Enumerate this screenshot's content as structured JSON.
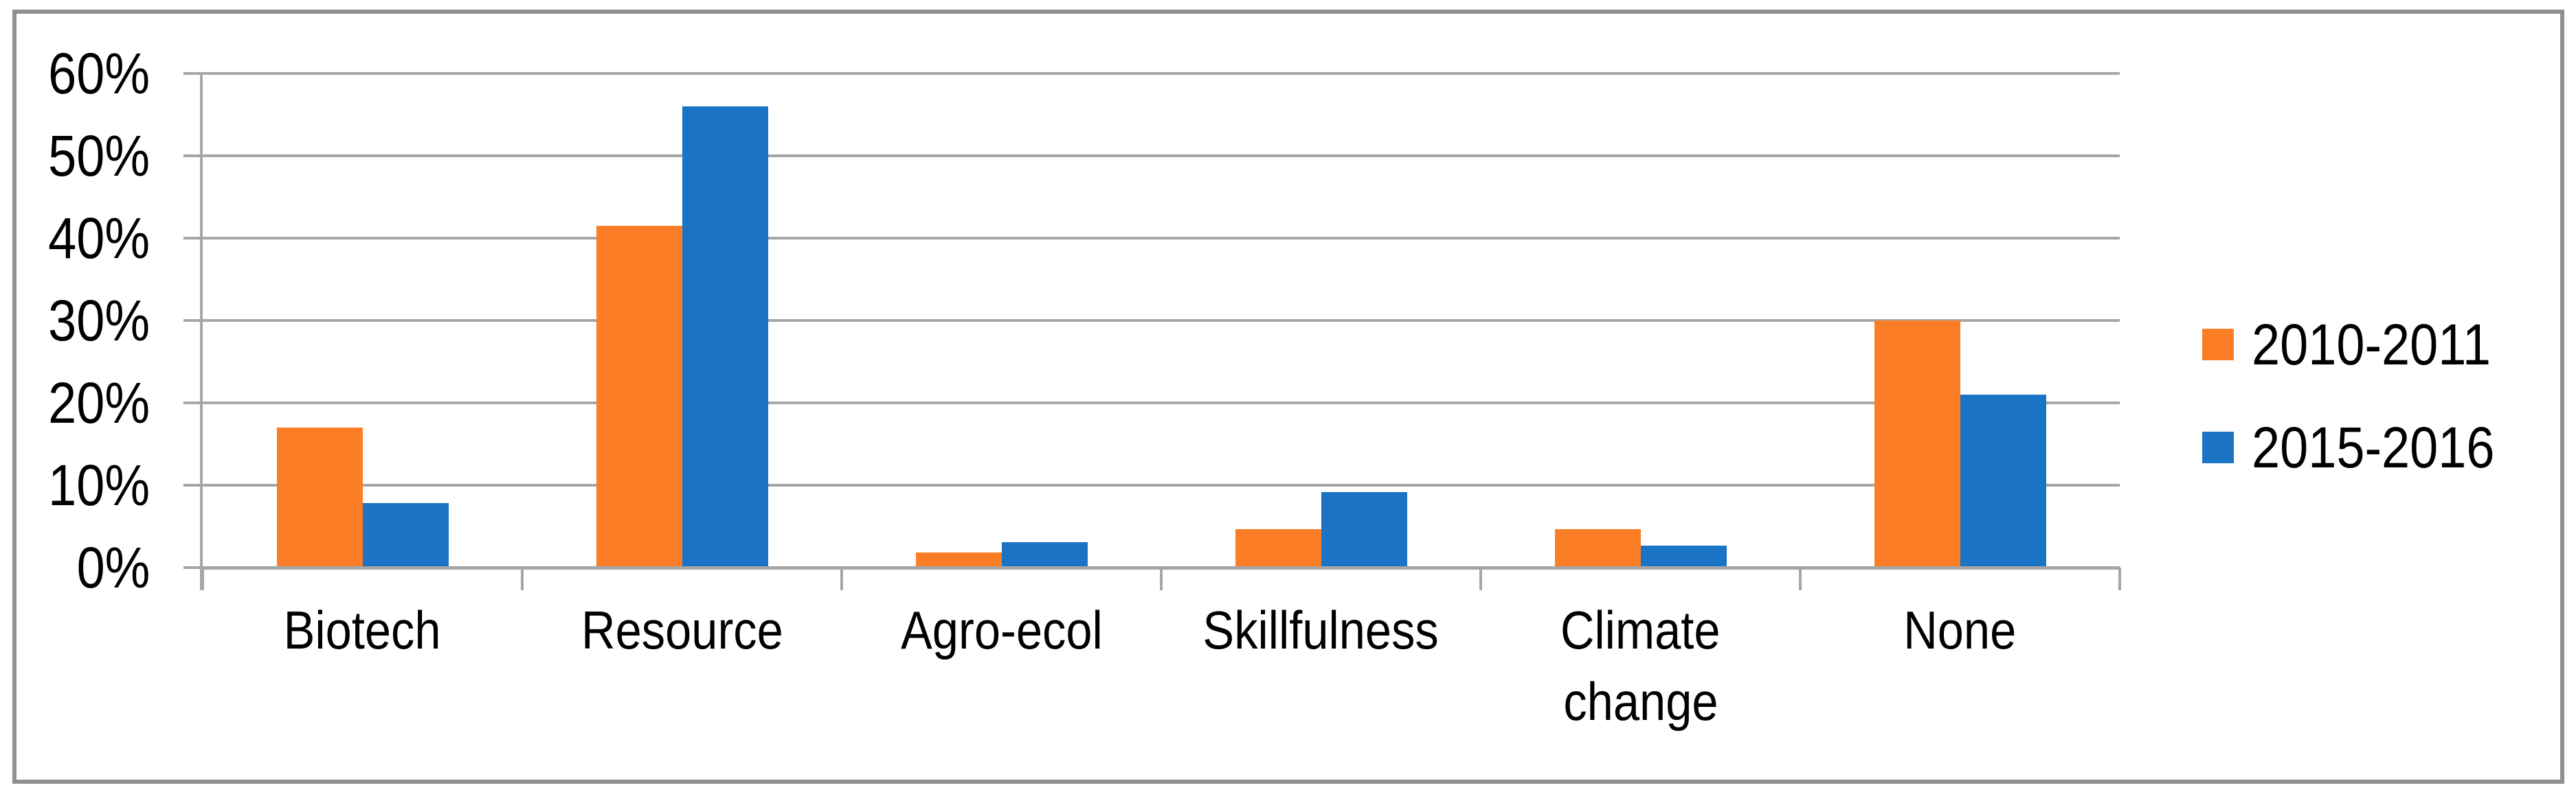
{
  "chart_data": {
    "type": "bar",
    "title": "",
    "xlabel": "",
    "ylabel": "",
    "categories": [
      "Biotech",
      "Resource",
      "Agro-ecol",
      "Skillfulness",
      "Climate change",
      "None"
    ],
    "category_label_lines": [
      [
        "Biotech"
      ],
      [
        "Resource"
      ],
      [
        "Agro-ecol"
      ],
      [
        "Skillfulness"
      ],
      [
        "Climate",
        "change"
      ],
      [
        "None"
      ]
    ],
    "series": [
      {
        "name": "2010-2011",
        "color": "#FB7D26",
        "values": [
          17,
          41.5,
          1.8,
          4.7,
          4.7,
          30
        ]
      },
      {
        "name": "2015-2016",
        "color": "#1B73C6",
        "values": [
          7.8,
          56,
          3.1,
          9.2,
          2.7,
          21
        ]
      }
    ],
    "ylim": [
      0,
      60
    ],
    "y_tick_step": 10,
    "y_tick_labels": [
      "60%",
      "50%",
      "40%",
      "30%",
      "20%",
      "10%",
      "0%"
    ],
    "grid": true,
    "legend_position": "right",
    "colors": {
      "grid": "#A6A6A6",
      "axis": "#A6A6A6",
      "frame_border": "#8F8F8F",
      "text": "#000000",
      "background": "#FFFFFF"
    }
  }
}
